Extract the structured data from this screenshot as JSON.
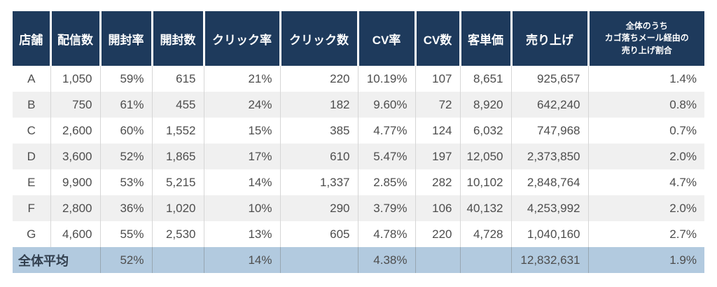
{
  "table": {
    "columns": [
      {
        "key": "store",
        "label": "店舗"
      },
      {
        "key": "delivered",
        "label": "配信数"
      },
      {
        "key": "open_rate",
        "label": "開封率"
      },
      {
        "key": "opens",
        "label": "開封数"
      },
      {
        "key": "click_rate",
        "label": "クリック率"
      },
      {
        "key": "clicks",
        "label": "クリック数"
      },
      {
        "key": "cv_rate",
        "label": "CV率"
      },
      {
        "key": "cv_count",
        "label": "CV数"
      },
      {
        "key": "aov",
        "label": "客単価"
      },
      {
        "key": "sales",
        "label": "売り上げ"
      },
      {
        "key": "cart_abandon_share",
        "label": "全体のうち\nカゴ落ちメール経由の\n売り上げ割合"
      }
    ],
    "rows": [
      [
        "A",
        "1,050",
        "59%",
        "615",
        "21%",
        "220",
        "10.19%",
        "107",
        "8,651",
        "925,657",
        "1.4%"
      ],
      [
        "B",
        "750",
        "61%",
        "455",
        "24%",
        "182",
        "9.60%",
        "72",
        "8,920",
        "642,240",
        "0.8%"
      ],
      [
        "C",
        "2,600",
        "60%",
        "1,552",
        "15%",
        "385",
        "4.77%",
        "124",
        "6,032",
        "747,968",
        "0.7%"
      ],
      [
        "D",
        "3,600",
        "52%",
        "1,865",
        "17%",
        "610",
        "5.47%",
        "197",
        "12,050",
        "2,373,850",
        "2.0%"
      ],
      [
        "E",
        "9,900",
        "53%",
        "5,215",
        "14%",
        "1,337",
        "2.85%",
        "282",
        "10,102",
        "2,848,764",
        "4.7%"
      ],
      [
        "F",
        "2,800",
        "36%",
        "1,020",
        "10%",
        "290",
        "3.79%",
        "106",
        "40,132",
        "4,253,992",
        "2.0%"
      ],
      [
        "G",
        "4,600",
        "55%",
        "2,530",
        "13%",
        "605",
        "4.78%",
        "220",
        "4,728",
        "1,040,160",
        "2.7%"
      ]
    ],
    "summary": {
      "label": "全体平均",
      "values": [
        "52%",
        "",
        "14%",
        "",
        "4.38%",
        "",
        "",
        "12,832,631",
        "1.9%"
      ]
    },
    "colors": {
      "header_bg": "#1e3a5c",
      "header_text": "#ffffff",
      "stripe_bg": "#f0f0f0",
      "summary_bg": "#b2cadf",
      "body_text": "#4d4d4d",
      "cell_border": "#d6d6d6"
    }
  }
}
